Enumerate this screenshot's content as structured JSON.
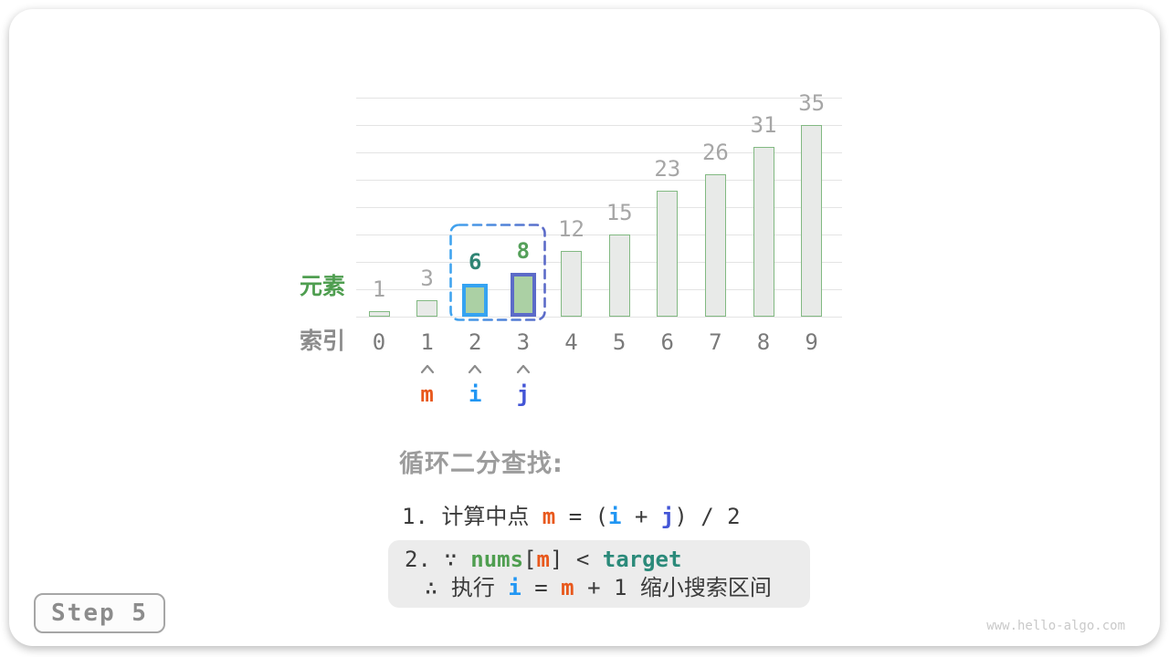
{
  "page": {
    "step_label": "Step 5",
    "watermark": "www.hello-algo.com"
  },
  "chart_data": {
    "type": "bar",
    "title": "",
    "categories": [
      "0",
      "1",
      "2",
      "3",
      "4",
      "5",
      "6",
      "7",
      "8",
      "9"
    ],
    "values": [
      1,
      3,
      6,
      8,
      12,
      15,
      23,
      26,
      31,
      35
    ],
    "xlabel": "索引",
    "ylabel": "元素",
    "ylim": [
      0,
      40
    ],
    "grid_step": 5,
    "grid": true,
    "legend": "none",
    "bar_fill": "#e8eae8",
    "bar_border": "#82b982",
    "highlight_fill": "#abd0a4",
    "highlighted": [
      {
        "index": 2,
        "border_color": "#35a3f1",
        "label_color": "#2f8574"
      },
      {
        "index": 3,
        "border_color": "#5c6bc8",
        "label_color": "#55a05a"
      }
    ],
    "selection_box": {
      "from_index": 2,
      "to_index": 3,
      "color_left": "#41a4ef",
      "color_right": "#5c6bc8"
    }
  },
  "pointers": [
    {
      "label": "m",
      "index": 1,
      "color": "#e8581c"
    },
    {
      "label": "i",
      "index": 2,
      "color": "#2196f3"
    },
    {
      "label": "j",
      "index": 3,
      "color": "#4355d6"
    }
  ],
  "explanation": {
    "heading": "循环二分查找:",
    "line1": [
      {
        "text": "1. 计算中点 ",
        "style": "plain"
      },
      {
        "text": "m",
        "style": "m"
      },
      {
        "text": " = (",
        "style": "plain"
      },
      {
        "text": "i",
        "style": "i"
      },
      {
        "text": " + ",
        "style": "plain"
      },
      {
        "text": "j",
        "style": "j"
      },
      {
        "text": ") / 2",
        "style": "plain"
      }
    ],
    "line2a": [
      {
        "text": "2. ∵ ",
        "style": "plain"
      },
      {
        "text": "nums",
        "style": "nums"
      },
      {
        "text": "[",
        "style": "plain"
      },
      {
        "text": "m",
        "style": "m"
      },
      {
        "text": "] < ",
        "style": "plain"
      },
      {
        "text": "target",
        "style": "target"
      }
    ],
    "line2b": [
      {
        "text": "∴ 执行 ",
        "style": "plain"
      },
      {
        "text": "i",
        "style": "i"
      },
      {
        "text": " = ",
        "style": "plain"
      },
      {
        "text": "m",
        "style": "m"
      },
      {
        "text": " + 1 缩小搜索区间",
        "style": "plain"
      }
    ]
  },
  "colors": {
    "plain": "#3b3b3b",
    "m": "#e8581c",
    "i": "#2196f3",
    "j": "#4355d6",
    "nums": "#4f9e50",
    "target": "#2b8a7a",
    "caret": "#8c8c8c",
    "grid": "#e4e4e4",
    "value_label": "#a6a6a6",
    "index_label": "#7a7a7a"
  }
}
